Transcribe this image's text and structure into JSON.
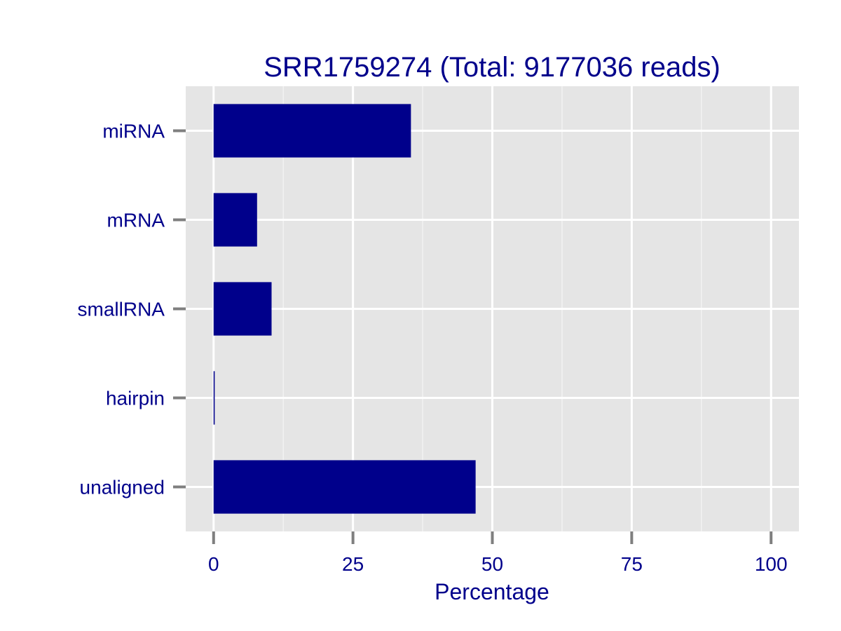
{
  "chart_data": {
    "type": "bar",
    "orientation": "horizontal",
    "title": "SRR1759274 (Total: 9177036 reads)",
    "xlabel": "Percentage",
    "ylabel": "",
    "categories": [
      "miRNA",
      "mRNA",
      "smallRNA",
      "hairpin",
      "unaligned"
    ],
    "values": [
      35.4,
      7.8,
      10.4,
      0.2,
      47.0
    ],
    "xlim": [
      -5,
      105
    ],
    "xticks": [
      0,
      25,
      50,
      75,
      100
    ],
    "xtick_labels": [
      "0",
      "25",
      "50",
      "75",
      "100"
    ],
    "grid": true,
    "legend": "none",
    "bar_color": "#00008b",
    "panel_color": "#e5e5e5",
    "text_color": "#00008b"
  }
}
